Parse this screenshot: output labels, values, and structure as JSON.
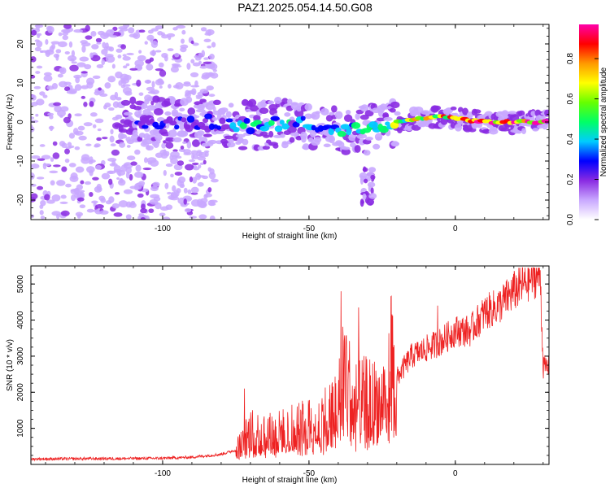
{
  "title": "PAZ1.2025.054.14.50.G08",
  "colors": {
    "snr_line": "#ee2222",
    "colormap": [
      "#ffffff",
      "#c9a8ff",
      "#8a2be2",
      "#0000ff",
      "#00ccff",
      "#00ff66",
      "#66ff00",
      "#ffff00",
      "#ff9900",
      "#ff0000",
      "#ff00aa"
    ]
  },
  "chart_data": [
    {
      "type": "heatmap",
      "xlabel": "Height of straight line (km)",
      "ylabel": "Frequency (Hz)",
      "xlim": [
        -145,
        32
      ],
      "ylim": [
        -25,
        25
      ],
      "xticks": [
        -100,
        -50,
        0
      ],
      "yticks": [
        -20,
        -10,
        0,
        10,
        20
      ],
      "colorbar": {
        "label": "Normalized spectral amplitude",
        "range": [
          0,
          0.97
        ],
        "ticks": [
          "0.0",
          "0.2",
          "0.4",
          "0.6",
          "0.8"
        ]
      },
      "ridge": [
        {
          "x": -112,
          "f": 0,
          "amp": 0.22
        },
        {
          "x": -82,
          "f": 0,
          "amp": 0.3
        },
        {
          "x": -70,
          "f": -1,
          "amp": 0.45
        },
        {
          "x": -55,
          "f": 0,
          "amp": 0.4
        },
        {
          "x": -40,
          "f": -2,
          "amp": 0.4
        },
        {
          "x": -30,
          "f": -2,
          "amp": 0.45
        },
        {
          "x": -20,
          "f": 0,
          "amp": 0.6
        },
        {
          "x": -5,
          "f": 1.5,
          "amp": 0.75
        },
        {
          "x": 10,
          "f": 0,
          "amp": 0.85
        },
        {
          "x": 25,
          "f": 0,
          "amp": 0.95
        }
      ]
    },
    {
      "type": "line",
      "xlabel": "Height of straight line (km)",
      "ylabel": "SNR (10 * v/v)",
      "xlim": [
        -145,
        32
      ],
      "ylim": [
        0,
        5500
      ],
      "xticks": [
        -100,
        -50,
        0
      ],
      "yticks": [
        1000,
        2000,
        3000,
        4000,
        5000
      ],
      "series": [
        {
          "x": [
            -145,
            -120,
            -100,
            -90,
            -80,
            -75,
            -72,
            -70,
            -65,
            -60,
            -55,
            -50,
            -45,
            -40,
            -38,
            -35,
            -30,
            -25,
            -22,
            -20,
            -15,
            -10,
            -5,
            0,
            5,
            10,
            15,
            20,
            25,
            29,
            30,
            32
          ],
          "values": [
            150,
            160,
            170,
            200,
            280,
            400,
            700,
            900,
            850,
            900,
            1000,
            1100,
            1300,
            1600,
            2800,
            1700,
            1800,
            1700,
            2800,
            2400,
            3000,
            3200,
            3400,
            3700,
            3700,
            4200,
            4400,
            4800,
            5100,
            5300,
            2700,
            2700
          ],
          "spikes": [
            {
              "x": -72,
              "y": 2100
            },
            {
              "x": -39,
              "y": 4800
            },
            {
              "x": -33,
              "y": 4350
            },
            {
              "x": -22,
              "y": 4650
            },
            {
              "x": -6,
              "y": 4400
            }
          ]
        }
      ]
    }
  ]
}
